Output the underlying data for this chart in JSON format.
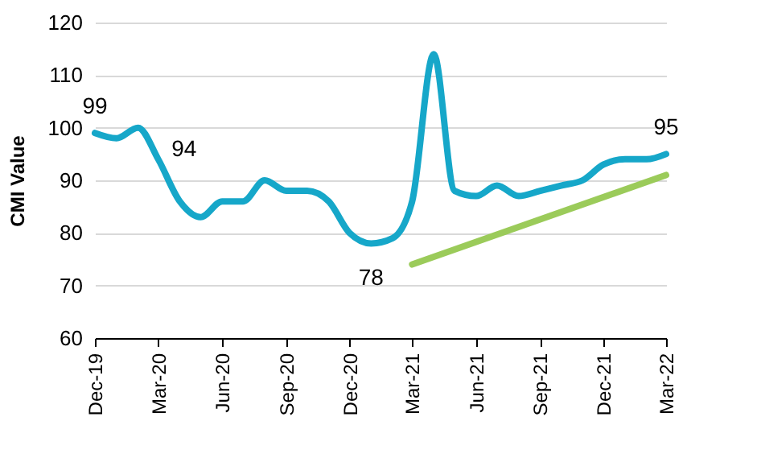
{
  "chart_data": {
    "type": "line",
    "ylabel": "CMI Value",
    "x": [
      "2019-12",
      "2020-01",
      "2020-02",
      "2020-03",
      "2020-04",
      "2020-05",
      "2020-06",
      "2020-07",
      "2020-08",
      "2020-09",
      "2020-10",
      "2020-11",
      "2020-12",
      "2021-01",
      "2021-02",
      "2021-03",
      "2021-04",
      "2021-05",
      "2021-06",
      "2021-07",
      "2021-08",
      "2021-09",
      "2021-10",
      "2021-11",
      "2021-12",
      "2022-01",
      "2022-02",
      "2022-03"
    ],
    "series": [
      {
        "color": "#16a7c9",
        "values": [
          99,
          98,
          100,
          94,
          86,
          83,
          86,
          86,
          90,
          88,
          88,
          86,
          80,
          78,
          79,
          86,
          114,
          88,
          87,
          89,
          87,
          88,
          89,
          90,
          93,
          94,
          94,
          95
        ],
        "value_labels": [
          "99",
          null,
          null,
          "94",
          null,
          null,
          null,
          null,
          null,
          null,
          null,
          null,
          null,
          "78",
          null,
          null,
          null,
          null,
          null,
          null,
          null,
          null,
          null,
          null,
          null,
          null,
          null,
          "95"
        ]
      },
      {
        "type": "line",
        "color": "#9bcb5a",
        "x": [
          "2021-03",
          "2022-03"
        ],
        "values": [
          74,
          91
        ]
      }
    ],
    "xlim": [
      "2019-12",
      "2022-03"
    ],
    "xticks": [
      {
        "value": "2019-12",
        "label": "Dec-19"
      },
      {
        "value": "2020-03",
        "label": "Mar-20"
      },
      {
        "value": "2020-06",
        "label": "Jun-20"
      },
      {
        "value": "2020-09",
        "label": "Sep-20"
      },
      {
        "value": "2020-12",
        "label": "Dec-20"
      },
      {
        "value": "2021-03",
        "label": "Mar-21"
      },
      {
        "value": "2021-06",
        "label": "Jun-21"
      },
      {
        "value": "2021-09",
        "label": "Sep-21"
      },
      {
        "value": "2021-12",
        "label": "Dec-21"
      },
      {
        "value": "2022-03",
        "label": "Mar-22"
      }
    ],
    "ylim": [
      60,
      120
    ],
    "yticks": [
      60,
      70,
      80,
      90,
      100,
      110,
      120
    ],
    "grid": "y"
  }
}
